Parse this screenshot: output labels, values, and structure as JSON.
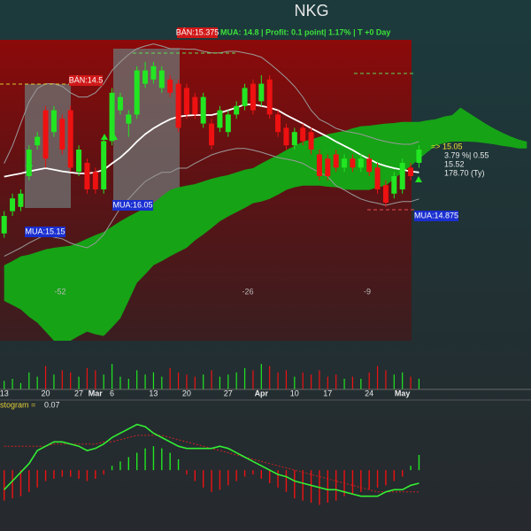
{
  "chart_data": {
    "type": "candlestick",
    "title": "NKG",
    "signal_sell": "BÁN:15.375",
    "signal_info": "MUA:  14.8 | Profit: 0.1 point| 1.17% | T +0 Day",
    "annotations": [
      "BÁN:14.5",
      "MUA:16.05",
      "MUA:15.15",
      "MUA:14.875"
    ],
    "price_box": [
      "=>  15.05",
      "3.79 %| 0.55",
      "15.52",
      "178.70 (Ty)"
    ],
    "cycle_labels": [
      -52,
      -26,
      -9
    ],
    "histogram_label": "stogram =",
    "histogram_value": 0.07,
    "categories": [
      "13",
      null,
      null,
      null,
      null,
      "20",
      null,
      null,
      null,
      "27",
      null,
      "Mar",
      null,
      "6",
      null,
      null,
      null,
      null,
      "13",
      null,
      null,
      null,
      "20",
      null,
      null,
      null,
      null,
      "27",
      null,
      null,
      null,
      "Apr",
      null,
      null,
      null,
      "10",
      null,
      null,
      null,
      "17",
      null,
      null,
      null,
      null,
      "24",
      null,
      null,
      null,
      "May",
      null,
      null,
      null,
      null,
      null,
      null,
      null,
      null,
      null,
      null,
      null,
      null,
      null,
      null,
      null
    ],
    "ylim": [
      11.4,
      17.2
    ],
    "up_color": "#22e622",
    "down_color": "#ee1111",
    "open": [
      13.47,
      13.89,
      13.97,
      14.55,
      15.13,
      15.79,
      15.38,
      15.63,
      15.79,
      14.63,
      14.8,
      14.63,
      14.3,
      15.21,
      15.79,
      15.54,
      15.71,
      16.29,
      16.37,
      16.21,
      16.37,
      16.29,
      16.21,
      16.04,
      15.54,
      15.54,
      15.46,
      15.38,
      15.71,
      15.87,
      16.29,
      15.96,
      16.37,
      15.71,
      15.46,
      15.13,
      15.46,
      15.38,
      14.96,
      14.88,
      14.96,
      14.71,
      14.88,
      14.71,
      14.88,
      14.71,
      14.38,
      14.22,
      14.3,
      14.71,
      14.8,
      null,
      null,
      null,
      null,
      null,
      null,
      null,
      null,
      null,
      null,
      null,
      null,
      null
    ],
    "high": [
      13.89,
      14.22,
      14.3,
      15.13,
      15.38,
      15.87,
      15.87,
      15.71,
      15.87,
      15.13,
      14.88,
      14.71,
      15.29,
      16.21,
      16.12,
      15.79,
      16.62,
      16.7,
      16.7,
      16.62,
      16.45,
      16.37,
      16.29,
      16.12,
      16.12,
      15.63,
      15.87,
      15.79,
      15.96,
      16.29,
      16.37,
      16.45,
      16.45,
      15.79,
      15.54,
      15.46,
      15.54,
      15.46,
      15.05,
      14.96,
      15.05,
      14.96,
      14.96,
      14.96,
      14.96,
      14.8,
      14.47,
      14.63,
      14.88,
      14.8,
      15.13,
      null,
      null,
      null,
      null,
      null,
      null,
      null,
      null,
      null,
      null,
      null,
      null,
      null
    ],
    "low": [
      13.39,
      13.8,
      13.89,
      14.47,
      15.05,
      14.71,
      15.29,
      14.96,
      14.63,
      14.55,
      14.22,
      14.22,
      14.22,
      15.13,
      15.71,
      15.29,
      15.63,
      16.21,
      16.29,
      16.12,
      16.04,
      15.38,
      15.63,
      15.63,
      15.46,
      15.05,
      15.38,
      15.29,
      15.63,
      15.79,
      15.71,
      15.87,
      15.63,
      15.29,
      15.05,
      15.05,
      15.13,
      14.96,
      14.47,
      14.47,
      14.63,
      14.63,
      14.63,
      14.63,
      14.55,
      14.22,
      13.97,
      14.13,
      14.22,
      14.47,
      14.71,
      null,
      null,
      null,
      null,
      null,
      null,
      null,
      null,
      null,
      null,
      null,
      null,
      null
    ],
    "close": [
      13.8,
      14.13,
      14.22,
      15.05,
      15.29,
      14.88,
      15.79,
      15.05,
      14.71,
      15.05,
      14.3,
      14.3,
      15.21,
      16.12,
      16.04,
      15.71,
      16.54,
      16.54,
      16.62,
      16.54,
      16.12,
      15.46,
      15.71,
      15.71,
      16.04,
      15.13,
      15.79,
      15.71,
      15.87,
      16.21,
      15.79,
      16.29,
      15.71,
      15.38,
      15.13,
      15.38,
      15.21,
      15.05,
      14.55,
      14.55,
      14.71,
      14.88,
      14.71,
      14.88,
      14.63,
      14.3,
      14.05,
      14.55,
      14.8,
      14.55,
      15.05,
      null,
      null,
      null,
      null,
      null,
      null,
      null,
      null,
      null,
      null,
      null,
      null,
      null
    ],
    "lines": [
      {
        "color": "#ffffff",
        "values": [
          14.54,
          14.57,
          14.6,
          14.64,
          14.67,
          14.7,
          14.67,
          14.64,
          14.62,
          14.6,
          14.6,
          14.62,
          14.67,
          14.79,
          14.9,
          15.04,
          15.2,
          15.34,
          15.45,
          15.54,
          15.62,
          15.67,
          15.69,
          15.7,
          15.7,
          15.7,
          15.74,
          15.79,
          15.84,
          15.9,
          15.9,
          15.87,
          15.84,
          15.79,
          15.7,
          15.62,
          15.54,
          15.45,
          15.37,
          15.29,
          15.2,
          15.12,
          15.04,
          14.95,
          14.87,
          14.79,
          14.74,
          14.7,
          14.67,
          14.64,
          14.62,
          null,
          null,
          null,
          null,
          null,
          null,
          null,
          null,
          null,
          null,
          null,
          null,
          null
        ]
      },
      {
        "color": "#9a9a9a",
        "values": [
          14.79,
          15.12,
          15.54,
          15.95,
          16.2,
          16.29,
          16.29,
          16.24,
          16.12,
          16.04,
          16.04,
          16.12,
          16.29,
          16.54,
          16.7,
          16.84,
          16.95,
          17.0,
          17.04,
          17.0,
          16.95,
          16.95,
          16.94,
          16.94,
          16.9,
          16.87,
          16.87,
          16.9,
          16.9,
          16.87,
          16.84,
          16.79,
          16.67,
          16.54,
          16.4,
          16.24,
          16.04,
          15.79,
          15.62,
          15.54,
          15.45,
          15.4,
          15.37,
          15.34,
          15.29,
          15.24,
          15.2,
          15.17,
          15.15,
          15.15,
          15.2,
          null,
          null,
          null,
          null,
          null,
          null,
          null,
          null,
          null,
          null,
          null,
          null,
          null
        ]
      },
      {
        "color": "#9a9a9a",
        "values": [
          13.04,
          13.12,
          13.2,
          13.29,
          13.37,
          13.45,
          13.4,
          13.37,
          13.29,
          13.24,
          13.2,
          13.29,
          13.45,
          13.7,
          13.95,
          14.12,
          14.29,
          14.45,
          14.54,
          14.62,
          14.62,
          14.7,
          14.7,
          14.79,
          14.87,
          14.95,
          15.0,
          15.04,
          15.07,
          15.07,
          15.04,
          15.0,
          14.95,
          14.9,
          14.87,
          14.84,
          14.79,
          14.7,
          14.62,
          14.54,
          14.37,
          14.29,
          14.2,
          14.12,
          14.07,
          14.04,
          14.0,
          14.04,
          14.07,
          14.07,
          14.12,
          null,
          null,
          null,
          null,
          null,
          null,
          null,
          null,
          null,
          null,
          null,
          null,
          null
        ]
      }
    ],
    "cloud_color": "#16a316",
    "cloud_a": [
      12.87,
      12.95,
      13.04,
      13.07,
      13.12,
      13.17,
      13.2,
      13.22,
      13.24,
      13.3,
      13.37,
      13.44,
      13.5,
      13.6,
      13.7,
      13.79,
      13.87,
      13.95,
      14.04,
      14.17,
      14.29,
      14.34,
      14.37,
      14.4,
      14.45,
      14.5,
      14.54,
      14.57,
      14.62,
      14.67,
      14.7,
      14.79,
      14.87,
      14.95,
      15.04,
      15.12,
      15.2,
      15.24,
      15.29,
      15.34,
      15.37,
      15.4,
      15.45,
      15.49,
      15.5,
      15.52,
      15.54,
      15.55,
      15.57,
      15.57,
      15.57,
      15.6,
      15.62,
      15.67,
      15.7,
      15.84,
      15.74,
      15.64,
      15.54,
      15.45,
      15.37,
      15.3,
      15.24,
      15.2
    ],
    "cloud_b": [
      12.2,
      12.12,
      12.04,
      11.9,
      11.79,
      11.62,
      11.45,
      11.45,
      11.45,
      11.54,
      11.62,
      11.57,
      11.54,
      11.7,
      11.87,
      12.2,
      12.54,
      12.7,
      12.87,
      12.95,
      13.04,
      13.12,
      13.2,
      13.34,
      13.45,
      13.57,
      13.7,
      13.79,
      13.87,
      13.95,
      14.04,
      14.07,
      14.12,
      14.2,
      14.29,
      14.34,
      14.37,
      14.37,
      14.37,
      14.35,
      14.34,
      14.3,
      14.29,
      14.29,
      14.29,
      14.34,
      14.37,
      14.5,
      14.62,
      14.74,
      14.87,
      15.0,
      15.12,
      15.17,
      15.2,
      15.2,
      15.2,
      15.19,
      15.17,
      15.15,
      15.12,
      15.1,
      15.07,
      15.07
    ],
    "vlim": [
      0,
      100
    ],
    "volume": [
      20,
      25,
      15,
      40,
      30,
      55,
      35,
      45,
      40,
      30,
      50,
      45,
      35,
      60,
      30,
      25,
      45,
      35,
      40,
      30,
      50,
      40,
      35,
      30,
      35,
      45,
      30,
      35,
      40,
      50,
      45,
      60,
      55,
      40,
      45,
      30,
      40,
      35,
      45,
      30,
      35,
      25,
      30,
      25,
      40,
      55,
      45,
      35,
      40,
      30,
      25,
      null,
      null,
      null,
      null,
      null,
      null,
      null,
      null,
      null,
      null,
      null,
      null,
      null
    ],
    "hlim": [
      -0.28,
      0.29
    ],
    "histogram": [
      -0.14,
      -0.13,
      -0.12,
      -0.1,
      -0.08,
      -0.05,
      -0.04,
      -0.03,
      -0.03,
      -0.04,
      -0.05,
      -0.04,
      -0.02,
      0.02,
      0.04,
      0.06,
      0.08,
      0.1,
      0.11,
      0.1,
      0.08,
      0.05,
      -0.02,
      -0.05,
      -0.08,
      -0.1,
      -0.09,
      -0.07,
      -0.05,
      -0.03,
      -0.02,
      -0.04,
      -0.06,
      -0.08,
      -0.1,
      -0.13,
      -0.14,
      -0.15,
      -0.16,
      -0.15,
      -0.14,
      -0.12,
      -0.11,
      -0.1,
      -0.09,
      -0.08,
      -0.07,
      -0.05,
      -0.03,
      0.02,
      0.07,
      null,
      null,
      null,
      null,
      null,
      null,
      null,
      null,
      null,
      null,
      null,
      null,
      null
    ],
    "macd": {
      "color": "#33ee33",
      "values": [
        -0.09,
        -0.05,
        -0.01,
        0.03,
        0.09,
        0.11,
        0.13,
        0.13,
        0.12,
        0.11,
        0.09,
        0.1,
        0.12,
        0.15,
        0.17,
        0.19,
        0.21,
        0.2,
        0.17,
        0.15,
        0.13,
        0.11,
        0.1,
        0.1,
        0.1,
        0.1,
        0.11,
        0.1,
        0.08,
        0.06,
        0.04,
        0.02,
        0,
        -0.02,
        -0.03,
        -0.05,
        -0.06,
        -0.07,
        -0.08,
        -0.09,
        -0.09,
        -0.1,
        -0.11,
        -0.12,
        -0.12,
        -0.12,
        -0.1,
        -0.09,
        -0.09,
        -0.07,
        -0.06,
        null,
        null,
        null,
        null,
        null,
        null,
        null,
        null,
        null,
        null,
        null,
        null,
        null
      ]
    },
    "signal": {
      "color": "#cc2222",
      "values": [
        0.11,
        0.11,
        0.11,
        0.11,
        0.11,
        0.11,
        0.12,
        0.12,
        0.12,
        0.12,
        0.12,
        0.12,
        0.13,
        0.13,
        0.14,
        0.15,
        0.16,
        0.16,
        0.16,
        0.16,
        0.15,
        0.14,
        0.13,
        0.12,
        0.11,
        0.1,
        0.09,
        0.08,
        0.07,
        0.06,
        0.05,
        0.04,
        0.03,
        0.02,
        0.01,
        0,
        -0.01,
        -0.02,
        -0.03,
        -0.04,
        -0.05,
        -0.06,
        -0.07,
        -0.08,
        -0.09,
        -0.1,
        -0.1,
        -0.1,
        -0.1,
        -0.1,
        -0.1,
        null,
        null,
        null,
        null,
        null,
        null,
        null,
        null,
        null,
        null,
        null,
        null,
        null
      ]
    }
  }
}
